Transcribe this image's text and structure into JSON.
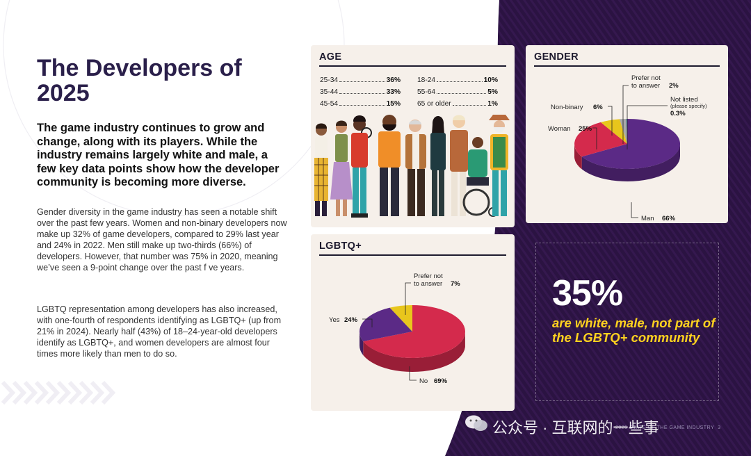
{
  "page": {
    "title": "The Developers of 2025",
    "lead": "The game industry continues to grow and change, along with its players. While the industry remains largely white and male, a few key data points show how the developer community is becoming more diverse.",
    "para1": "Gender diversity in the game industry has seen a notable shift over the past few years. Women and non-binary developers now make up 32% of game developers, compared to 29% last year and 24% in 2022. Men still make up two-thirds (66%) of developers. However, that number was 75% in 2020, meaning we’ve seen a 9-point change over the past f ve years.",
    "para2": "LGBTQ representation among developers has also increased, with one-fourth of respondents identifying as LGBTQ+ (up from 21% in 2024). Nearly half (43%) of 18–24-year-old developers identify as LGBTQ+, and women developers are almost four times more likely than men to do so."
  },
  "age": {
    "title": "AGE",
    "rows": [
      {
        "label": "25-34",
        "value": "36%"
      },
      {
        "label": "35-44",
        "value": "33%"
      },
      {
        "label": "45-54",
        "value": "15%"
      },
      {
        "label": "18-24",
        "value": "10%"
      },
      {
        "label": "55-64",
        "value": "5%"
      },
      {
        "label": "65 or older",
        "value": "1%"
      }
    ]
  },
  "gender": {
    "title": "GENDER",
    "labels": {
      "nonbinary": "Non-binary",
      "nonbinary_value": "6%",
      "prefer1": "Prefer not",
      "prefer2": "to answer",
      "prefer_value": "2%",
      "notlisted1": "Not listed",
      "notlisted2": "(please specify)",
      "notlisted_value": "0.3%",
      "woman": "Woman",
      "woman_value": "25%",
      "man": "Man",
      "man_value": "66%"
    }
  },
  "lgbtq": {
    "title": "LGBTQ+",
    "labels": {
      "yes": "Yes",
      "yes_value": "24%",
      "prefer1": "Prefer not",
      "prefer2": "to answer",
      "prefer_value": "7%",
      "no": "No",
      "no_value": "69%"
    }
  },
  "stat": {
    "big": "35%",
    "small": "are white, male, not part of the LGBTQ+ community"
  },
  "footer": {
    "text": "2025 STATE OF THE GAME INDUSTRY",
    "page_number": "3"
  },
  "watermark": "公众号 · 互联网的一些事",
  "chart_data": [
    {
      "type": "pie",
      "title": "GENDER",
      "categories": [
        "Man",
        "Woman",
        "Non-binary",
        "Prefer not to answer",
        "Not listed (please specify)"
      ],
      "values": [
        66,
        25,
        6,
        2,
        0.3
      ],
      "colors": [
        "#5b2a86",
        "#d42a4c",
        "#e8c61c",
        "#a9a9a9",
        "#3b8ea5"
      ]
    },
    {
      "type": "pie",
      "title": "LGBTQ+",
      "categories": [
        "No",
        "Yes",
        "Prefer not to answer"
      ],
      "values": [
        69,
        24,
        7
      ],
      "colors": [
        "#d42a4c",
        "#5b2a86",
        "#e8c61c"
      ]
    }
  ],
  "colors": {
    "purple": "#5b2a86",
    "red": "#d42a4c",
    "yellow": "#e8c61c",
    "dark_bg": "#2a1240",
    "accent_yellow": "#ffd21f"
  }
}
